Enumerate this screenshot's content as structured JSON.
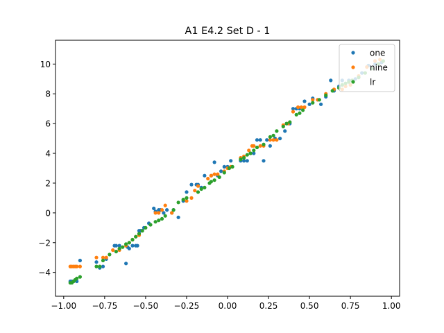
{
  "chart_data": {
    "type": "scatter",
    "title": "A1 E4.2 Set D - 1",
    "xlabel": "",
    "ylabel": "",
    "xlim": [
      -1.05,
      1.05
    ],
    "ylim": [
      -5.6,
      11.6
    ],
    "xticks": [
      -1.0,
      -0.75,
      -0.5,
      -0.25,
      0.0,
      0.25,
      0.5,
      0.75,
      1.0
    ],
    "xtick_labels": [
      "−1.00",
      "−0.75",
      "−0.50",
      "−0.25",
      "0.00",
      "0.25",
      "0.50",
      "0.75",
      "1.00"
    ],
    "yticks": [
      -4,
      -2,
      0,
      2,
      4,
      6,
      8,
      10
    ],
    "ytick_labels": [
      "−4",
      "−2",
      "0",
      "2",
      "4",
      "6",
      "8",
      "10"
    ],
    "grid": false,
    "legend_position": "top-right",
    "series": [
      {
        "name": "one",
        "color": "#1f77b4",
        "x": [
          -0.96,
          -0.95,
          -0.94,
          -0.92,
          -0.9,
          -0.8,
          -0.78,
          -0.76,
          -0.74,
          -0.69,
          -0.68,
          -0.66,
          -0.62,
          -0.61,
          -0.6,
          -0.58,
          -0.56,
          -0.55,
          -0.54,
          -0.53,
          -0.51,
          -0.48,
          -0.45,
          -0.44,
          -0.42,
          -0.41,
          -0.39,
          -0.37,
          -0.34,
          -0.33,
          -0.3,
          -0.27,
          -0.25,
          -0.22,
          -0.19,
          -0.18,
          -0.16,
          -0.14,
          -0.1,
          -0.08,
          -0.06,
          -0.04,
          -0.02,
          0.0,
          0.02,
          0.08,
          0.1,
          0.12,
          0.14,
          0.16,
          0.18,
          0.2,
          0.22,
          0.24,
          0.26,
          0.29,
          0.32,
          0.35,
          0.38,
          0.4,
          0.42,
          0.44,
          0.47,
          0.5,
          0.52,
          0.55,
          0.57,
          0.6,
          0.63,
          0.65,
          0.68,
          0.7,
          0.74,
          0.78,
          0.82,
          0.86,
          0.9,
          0.94
        ],
        "y": [
          -4.6,
          -4.6,
          -4.6,
          -4.6,
          -3.2,
          -3.3,
          -3.7,
          -3.6,
          -3.1,
          -2.2,
          -2.2,
          -2.2,
          -3.4,
          -2.3,
          -2.4,
          -2.2,
          -2.2,
          -2.2,
          -1.2,
          -1.2,
          -1.0,
          -0.7,
          0.3,
          0.1,
          0.2,
          0.2,
          0.0,
          0.2,
          0.0,
          0.2,
          -0.3,
          0.8,
          1.4,
          1.9,
          1.9,
          1.9,
          1.7,
          2.5,
          2.5,
          3.4,
          2.5,
          2.8,
          3.1,
          3.1,
          3.5,
          3.5,
          3.5,
          3.5,
          4.0,
          4.0,
          4.9,
          4.9,
          3.5,
          4.9,
          4.5,
          5.0,
          5.0,
          5.5,
          6.0,
          7.0,
          7.0,
          7.0,
          7.5,
          7.3,
          7.7,
          7.6,
          7.3,
          7.8,
          8.9,
          8.2,
          8.5,
          8.9,
          8.9,
          9.0,
          9.4,
          9.9,
          10.0,
          10.1
        ]
      },
      {
        "name": "nine",
        "color": "#ff7f0e",
        "x": [
          -0.96,
          -0.95,
          -0.94,
          -0.93,
          -0.92,
          -0.9,
          -0.8,
          -0.76,
          -0.74,
          -0.7,
          -0.66,
          -0.62,
          -0.6,
          -0.58,
          -0.56,
          -0.54,
          -0.44,
          -0.42,
          -0.4,
          -0.38,
          -0.34,
          -0.25,
          -0.22,
          -0.2,
          -0.18,
          -0.12,
          -0.1,
          -0.08,
          -0.06,
          -0.02,
          0.0,
          0.02,
          0.08,
          0.1,
          0.13,
          0.15,
          0.16,
          0.2,
          0.22,
          0.26,
          0.28,
          0.3,
          0.34,
          0.37,
          0.4,
          0.43,
          0.45,
          0.47,
          0.52,
          0.55,
          0.6,
          0.65,
          0.7,
          0.72,
          0.75,
          0.8,
          0.85,
          0.9,
          0.93
        ],
        "y": [
          -3.6,
          -3.6,
          -3.6,
          -3.6,
          -3.6,
          -3.6,
          -3.0,
          -3.0,
          -3.0,
          -2.5,
          -2.5,
          -2.2,
          -2.0,
          -1.8,
          -1.6,
          -1.5,
          0.0,
          0.0,
          0.2,
          0.5,
          0.0,
          0.8,
          1.0,
          1.5,
          1.8,
          2.3,
          2.5,
          2.6,
          2.6,
          2.8,
          3.0,
          3.1,
          3.7,
          3.8,
          4.2,
          4.5,
          4.5,
          4.5,
          4.5,
          4.9,
          4.9,
          4.9,
          5.9,
          6.0,
          6.8,
          7.1,
          7.1,
          7.1,
          7.6,
          7.6,
          8.0,
          8.3,
          8.3,
          8.5,
          8.6,
          9.2,
          9.8,
          10.2,
          10.3
        ]
      },
      {
        "name": "lr",
        "color": "#2ca02c",
        "x": [
          -0.96,
          -0.95,
          -0.94,
          -0.93,
          -0.92,
          -0.9,
          -0.8,
          -0.78,
          -0.76,
          -0.72,
          -0.68,
          -0.66,
          -0.64,
          -0.62,
          -0.6,
          -0.58,
          -0.56,
          -0.54,
          -0.52,
          -0.5,
          -0.47,
          -0.44,
          -0.42,
          -0.4,
          -0.38,
          -0.33,
          -0.3,
          -0.27,
          -0.25,
          -0.18,
          -0.16,
          -0.14,
          -0.11,
          -0.1,
          -0.08,
          -0.05,
          -0.02,
          0.01,
          0.03,
          0.08,
          0.1,
          0.12,
          0.14,
          0.16,
          0.18,
          0.22,
          0.26,
          0.28,
          0.3,
          0.34,
          0.36,
          0.38,
          0.42,
          0.44,
          0.46,
          0.52,
          0.56,
          0.6,
          0.64,
          0.68,
          0.7,
          0.72,
          0.74,
          0.76,
          0.8,
          0.84,
          0.88,
          0.92,
          0.95
        ],
        "y": [
          -4.7,
          -4.7,
          -4.6,
          -4.5,
          -4.4,
          -4.3,
          -3.6,
          -3.6,
          -3.2,
          -2.8,
          -2.6,
          -2.4,
          -2.3,
          -2.1,
          -2.0,
          -1.8,
          -1.6,
          -1.4,
          -1.2,
          -1.0,
          -0.8,
          -0.6,
          -0.5,
          -0.4,
          -0.2,
          0.2,
          0.7,
          0.9,
          1.0,
          1.4,
          1.6,
          1.7,
          2.0,
          2.1,
          2.2,
          2.4,
          2.7,
          3.0,
          3.1,
          3.6,
          3.7,
          3.9,
          4.0,
          4.2,
          4.4,
          4.6,
          5.1,
          5.2,
          5.5,
          5.8,
          6.0,
          6.1,
          6.6,
          6.7,
          6.9,
          7.4,
          7.6,
          7.9,
          8.2,
          8.4,
          8.6,
          8.7,
          8.8,
          8.9,
          9.1,
          9.4,
          9.7,
          10.0,
          10.2
        ]
      }
    ]
  }
}
